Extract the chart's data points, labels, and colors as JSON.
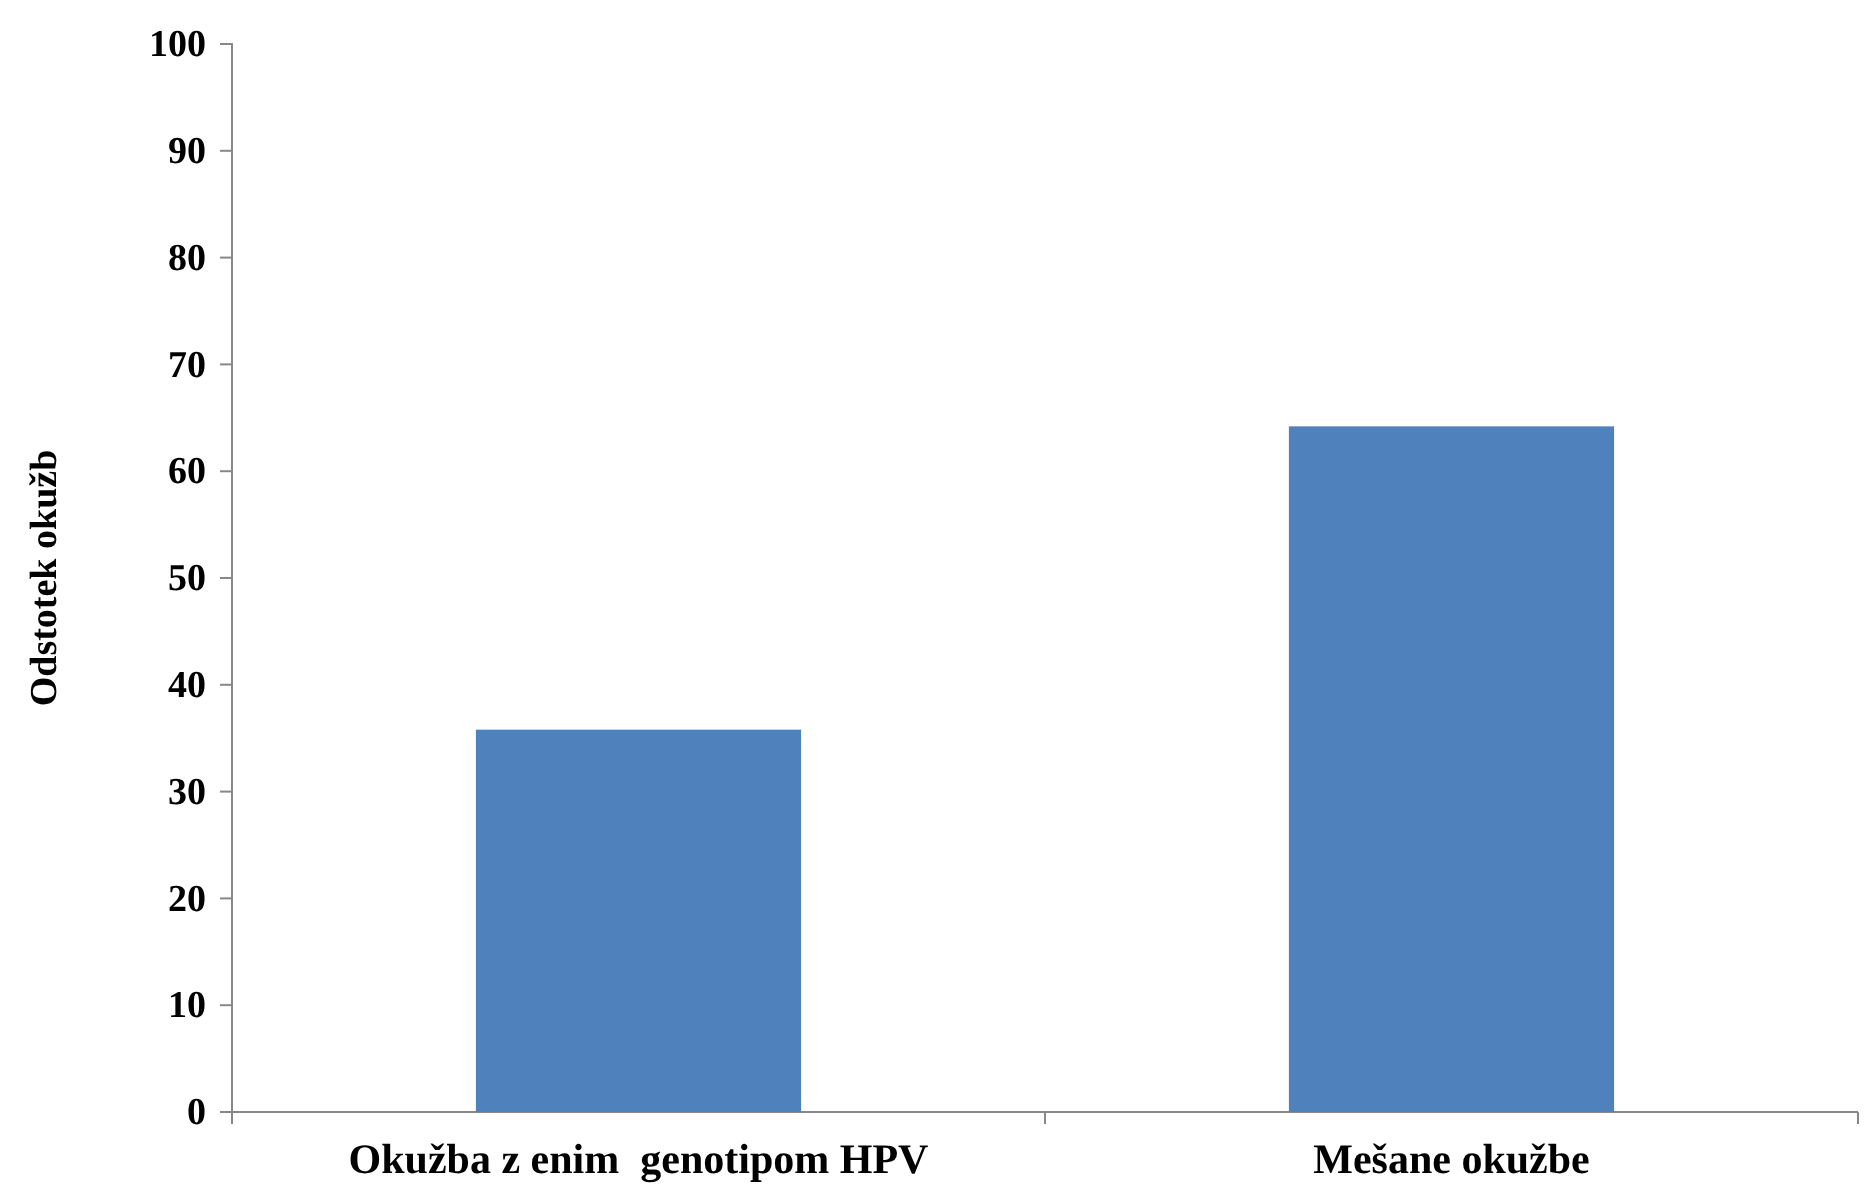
{
  "chart_data": {
    "type": "bar",
    "ylabel": "Odstotek okužb",
    "categories": [
      "Okužba z enim  genotipom HPV",
      "Mešane okužbe"
    ],
    "values": [
      35.8,
      64.2
    ],
    "color": "#4f81bd",
    "ylim": [
      0,
      100
    ],
    "yticks": [
      0,
      10,
      20,
      30,
      40,
      50,
      60,
      70,
      80,
      90,
      100
    ],
    "grid": false
  }
}
